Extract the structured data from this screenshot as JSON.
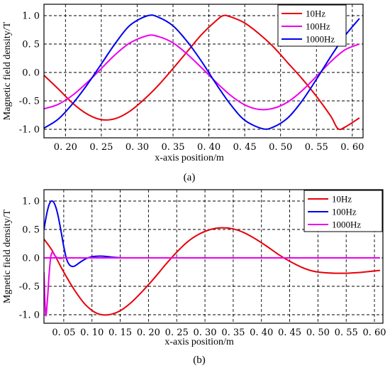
{
  "chart_data": [
    {
      "type": "line",
      "panel_label": "(a)",
      "xlabel": "x-axis position/m",
      "ylabel": "Magnetic field density/T",
      "xlim": [
        0.17,
        0.615
      ],
      "ylim": [
        -1.15,
        1.2
      ],
      "xticks": [
        0.2,
        0.25,
        0.3,
        0.35,
        0.4,
        0.45,
        0.5,
        0.55,
        0.6
      ],
      "xtick_labels": [
        "0. 20",
        "0. 25",
        "0. 30",
        "0. 35",
        "0. 40",
        "0. 45",
        "0. 50",
        "0. 55",
        "0. 60"
      ],
      "yticks": [
        1.0,
        0.5,
        0.0,
        -0.5,
        -1.0
      ],
      "ytick_labels": [
        "1. 0",
        "0. 5",
        "0. 0",
        "-0. 5",
        "-1. 0"
      ],
      "grid": true,
      "legend_position": "top-right",
      "series": [
        {
          "name": "10Hz",
          "color": "#e8000b",
          "x": [
            0.17,
            0.19,
            0.21,
            0.23,
            0.25,
            0.27,
            0.29,
            0.31,
            0.33,
            0.35,
            0.37,
            0.39,
            0.41,
            0.42,
            0.43,
            0.45,
            0.47,
            0.49,
            0.51,
            0.53,
            0.55,
            0.57,
            0.58,
            0.59,
            0.61
          ],
          "y": [
            -0.05,
            -0.29,
            -0.54,
            -0.73,
            -0.83,
            -0.81,
            -0.68,
            -0.47,
            -0.22,
            0.07,
            0.37,
            0.67,
            0.91,
            1.0,
            0.98,
            0.87,
            0.68,
            0.45,
            0.17,
            -0.11,
            -0.42,
            -0.77,
            -0.99,
            -0.96,
            -0.8
          ]
        },
        {
          "name": "100Hz",
          "color": "#ee00ee",
          "x": [
            0.17,
            0.19,
            0.21,
            0.23,
            0.25,
            0.27,
            0.29,
            0.315,
            0.33,
            0.35,
            0.37,
            0.39,
            0.41,
            0.43,
            0.45,
            0.47,
            0.49,
            0.51,
            0.53,
            0.55,
            0.57,
            0.59,
            0.61
          ],
          "y": [
            -0.64,
            -0.56,
            -0.4,
            -0.18,
            0.07,
            0.32,
            0.52,
            0.65,
            0.63,
            0.52,
            0.32,
            0.08,
            -0.17,
            -0.4,
            -0.57,
            -0.65,
            -0.63,
            -0.52,
            -0.32,
            -0.07,
            0.19,
            0.4,
            0.5
          ]
        },
        {
          "name": "1000Hz",
          "color": "#0000ee",
          "x": [
            0.17,
            0.19,
            0.21,
            0.23,
            0.25,
            0.27,
            0.29,
            0.315,
            0.33,
            0.35,
            0.37,
            0.39,
            0.41,
            0.43,
            0.45,
            0.475,
            0.49,
            0.51,
            0.53,
            0.55,
            0.57,
            0.59,
            0.61
          ],
          "y": [
            -0.98,
            -0.82,
            -0.55,
            -0.22,
            0.15,
            0.52,
            0.83,
            1.0,
            0.97,
            0.82,
            0.54,
            0.19,
            -0.2,
            -0.56,
            -0.84,
            -0.99,
            -0.96,
            -0.8,
            -0.5,
            -0.12,
            0.28,
            0.65,
            0.95
          ]
        }
      ]
    },
    {
      "type": "line",
      "panel_label": "(b)",
      "xlabel": "x-axis position/m",
      "ylabel": "Mgnetic field density/T",
      "xlim": [
        0.015,
        0.615
      ],
      "ylim": [
        -1.15,
        1.2
      ],
      "xticks": [
        0.05,
        0.1,
        0.15,
        0.2,
        0.25,
        0.3,
        0.35,
        0.4,
        0.45,
        0.5,
        0.55,
        0.6
      ],
      "xtick_labels": [
        "0. 05",
        "0. 10",
        "0. 15",
        "0. 20",
        "0. 25",
        "0. 30",
        "0. 35",
        "0. 40",
        "0. 45",
        "0. 50",
        "0. 55",
        "0. 60"
      ],
      "yticks": [
        1.0,
        0.5,
        0.0,
        -0.5,
        -1.0
      ],
      "ytick_labels": [
        "1. 0",
        "0. 5",
        "0. 0",
        "-0. 5",
        "-1. 0"
      ],
      "grid": true,
      "legend_position": "top-right",
      "series": [
        {
          "name": "10Hz",
          "color": "#e8000b",
          "x": [
            0.015,
            0.03,
            0.05,
            0.07,
            0.09,
            0.11,
            0.13,
            0.15,
            0.17,
            0.19,
            0.21,
            0.23,
            0.25,
            0.27,
            0.29,
            0.31,
            0.33,
            0.35,
            0.37,
            0.39,
            0.41,
            0.43,
            0.45,
            0.47,
            0.49,
            0.51,
            0.53,
            0.55,
            0.57,
            0.59,
            0.61
          ],
          "y": [
            0.33,
            0.12,
            -0.25,
            -0.58,
            -0.84,
            -0.98,
            -1.0,
            -0.93,
            -0.78,
            -0.58,
            -0.36,
            -0.12,
            0.1,
            0.29,
            0.42,
            0.5,
            0.53,
            0.51,
            0.44,
            0.33,
            0.2,
            0.06,
            -0.06,
            -0.16,
            -0.23,
            -0.26,
            -0.27,
            -0.27,
            -0.26,
            -0.24,
            -0.22
          ]
        },
        {
          "name": "100Hz",
          "color": "#0000ee",
          "x": [
            0.015,
            0.02,
            0.025,
            0.03,
            0.035,
            0.04,
            0.045,
            0.05,
            0.055,
            0.06,
            0.065,
            0.07,
            0.08,
            0.09,
            0.1,
            0.11,
            0.12,
            0.13,
            0.14,
            0.16,
            0.2,
            0.61
          ],
          "y": [
            0.5,
            0.78,
            0.96,
            1.0,
            0.92,
            0.74,
            0.48,
            0.2,
            -0.02,
            -0.12,
            -0.15,
            -0.14,
            -0.07,
            -0.01,
            0.02,
            0.03,
            0.03,
            0.02,
            0.01,
            0.0,
            0.0,
            0.0
          ]
        },
        {
          "name": "1000Hz",
          "color": "#ee00ee",
          "x": [
            0.015,
            0.018,
            0.021,
            0.024,
            0.027,
            0.03,
            0.033,
            0.036,
            0.04,
            0.045,
            0.05,
            0.06,
            0.61
          ],
          "y": [
            -0.25,
            -1.0,
            -0.75,
            -0.3,
            0.02,
            0.1,
            0.06,
            0.02,
            0.0,
            -0.01,
            0.0,
            0.0,
            0.0
          ]
        }
      ]
    }
  ]
}
